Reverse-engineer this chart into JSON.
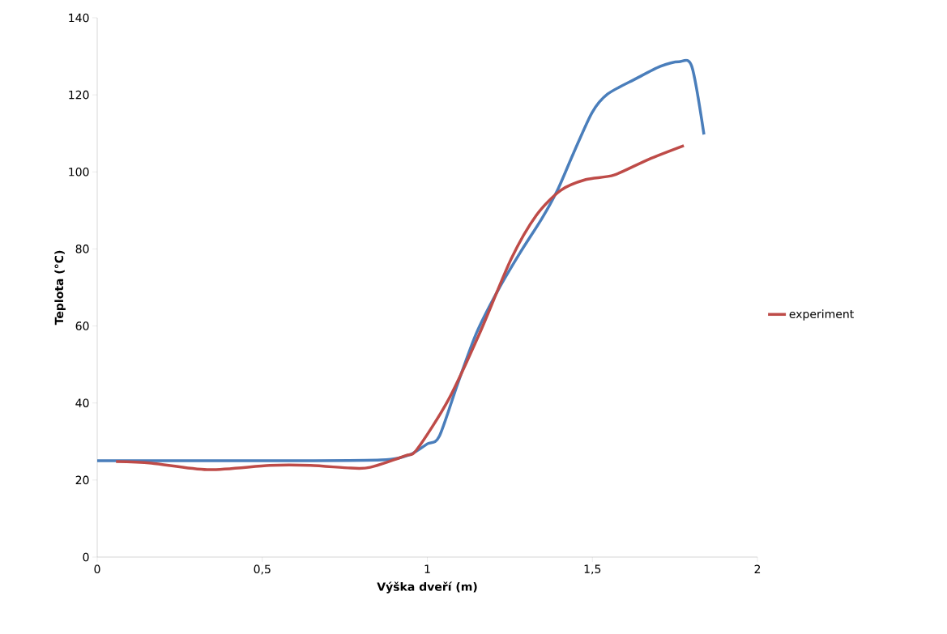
{
  "chart_data": {
    "type": "line",
    "xlabel": "Výška dveří (m)",
    "ylabel": "Teplota (°C)",
    "xlim": [
      0,
      2
    ],
    "ylim": [
      0,
      140
    ],
    "xticks": [
      0,
      {
        "value": 0.5,
        "label": "0,5"
      },
      1,
      {
        "value": 1.5,
        "label": "1,5"
      },
      2
    ],
    "yticks": [
      0,
      20,
      40,
      60,
      80,
      100,
      120,
      140
    ],
    "legend": "right",
    "series": [
      {
        "color": "#4a7ebb",
        "x": [
          0,
          0.3,
          0.6,
          0.86,
          0.945,
          1.0,
          1.036,
          1.092,
          1.148,
          1.215,
          1.281,
          1.347,
          1.394,
          1.443,
          1.499,
          1.546,
          1.632,
          1.706,
          1.762,
          1.801,
          1.838
        ],
        "values": [
          25,
          25,
          25,
          25.2,
          26.5,
          29.4,
          31.3,
          45,
          58,
          69.4,
          79,
          87.9,
          95.2,
          104.9,
          115.4,
          120.2,
          124.2,
          127.4,
          128.6,
          127.4,
          109.7
        ]
      },
      {
        "name": "experiment",
        "color": "#be4b48",
        "x": [
          0.057,
          0.164,
          0.336,
          0.523,
          0.646,
          0.768,
          0.827,
          0.933,
          0.969,
          1.065,
          1.158,
          1.254,
          1.33,
          1.404,
          1.48,
          1.566,
          1.669,
          1.777
        ],
        "values": [
          24.8,
          24.4,
          22.7,
          23.8,
          23.8,
          23.1,
          23.3,
          26.3,
          28,
          41,
          58,
          77.4,
          88.7,
          95.2,
          98,
          99.2,
          103.2,
          106.8
        ]
      }
    ]
  }
}
